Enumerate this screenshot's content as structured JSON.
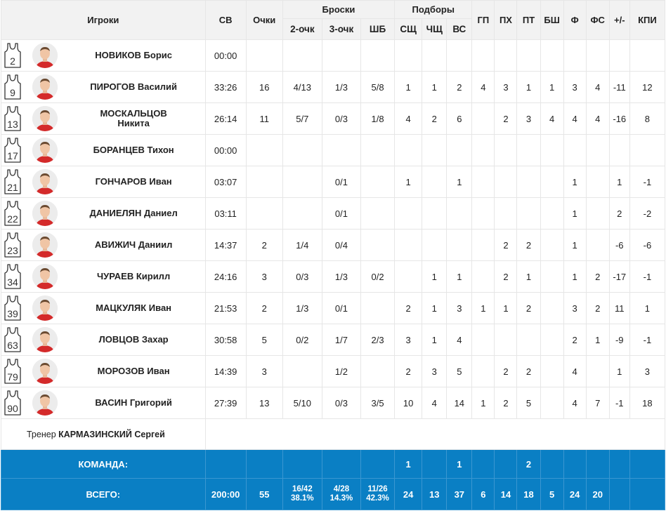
{
  "header": {
    "players": "Игроки",
    "minutes": "СВ",
    "points": "Очки",
    "shots": "Броски",
    "two": "2-очк",
    "three": "3-очк",
    "ft": "ШБ",
    "rebounds": "Подборы",
    "off": "СЩ",
    "def": "ЧЩ",
    "tot": "ВС",
    "ast": "ГП",
    "to": "ПХ",
    "stl": "ПТ",
    "blk": "БШ",
    "pf": "Ф",
    "fd": "ФС",
    "pm": "+/-",
    "eff": "КПИ"
  },
  "players": [
    {
      "num": "2",
      "name": "НОВИКОВ Борис",
      "sv": "00:00",
      "pts": "",
      "two": "",
      "three": "",
      "ft": "",
      "off": "",
      "def": "",
      "tot": "",
      "ast": "",
      "to": "",
      "stl": "",
      "blk": "",
      "pf": "",
      "fd": "",
      "pm": "",
      "eff": ""
    },
    {
      "num": "9",
      "name": "ПИРОГОВ Василий",
      "sv": "33:26",
      "pts": "16",
      "two": "4/13",
      "three": "1/3",
      "ft": "5/8",
      "off": "1",
      "def": "1",
      "tot": "2",
      "ast": "4",
      "to": "3",
      "stl": "1",
      "blk": "1",
      "pf": "3",
      "fd": "4",
      "pm": "-11",
      "eff": "12"
    },
    {
      "num": "13",
      "name": "МОСКАЛЬЦОВ Никита",
      "sv": "26:14",
      "pts": "11",
      "two": "5/7",
      "three": "0/3",
      "ft": "1/8",
      "off": "4",
      "def": "2",
      "tot": "6",
      "ast": "",
      "to": "2",
      "stl": "3",
      "blk": "4",
      "pf": "4",
      "fd": "4",
      "pm": "-16",
      "eff": "8"
    },
    {
      "num": "17",
      "name": "БОРАНЦЕВ Тихон",
      "sv": "00:00",
      "pts": "",
      "two": "",
      "three": "",
      "ft": "",
      "off": "",
      "def": "",
      "tot": "",
      "ast": "",
      "to": "",
      "stl": "",
      "blk": "",
      "pf": "",
      "fd": "",
      "pm": "",
      "eff": ""
    },
    {
      "num": "21",
      "name": "ГОНЧАРОВ Иван",
      "sv": "03:07",
      "pts": "",
      "two": "",
      "three": "0/1",
      "ft": "",
      "off": "1",
      "def": "",
      "tot": "1",
      "ast": "",
      "to": "",
      "stl": "",
      "blk": "",
      "pf": "1",
      "fd": "",
      "pm": "1",
      "eff": "-1"
    },
    {
      "num": "22",
      "name": "ДАНИЕЛЯН Даниел",
      "sv": "03:11",
      "pts": "",
      "two": "",
      "three": "0/1",
      "ft": "",
      "off": "",
      "def": "",
      "tot": "",
      "ast": "",
      "to": "",
      "stl": "",
      "blk": "",
      "pf": "1",
      "fd": "",
      "pm": "2",
      "eff": "-2"
    },
    {
      "num": "23",
      "name": "АВИЖИЧ Даниил",
      "sv": "14:37",
      "pts": "2",
      "two": "1/4",
      "three": "0/4",
      "ft": "",
      "off": "",
      "def": "",
      "tot": "",
      "ast": "",
      "to": "2",
      "stl": "2",
      "blk": "",
      "pf": "1",
      "fd": "",
      "pm": "-6",
      "eff": "-6"
    },
    {
      "num": "34",
      "name": "ЧУРАЕВ Кирилл",
      "sv": "24:16",
      "pts": "3",
      "two": "0/3",
      "three": "1/3",
      "ft": "0/2",
      "off": "",
      "def": "1",
      "tot": "1",
      "ast": "",
      "to": "2",
      "stl": "1",
      "blk": "",
      "pf": "1",
      "fd": "2",
      "pm": "-17",
      "eff": "-1"
    },
    {
      "num": "39",
      "name": "МАЦКУЛЯК Иван",
      "sv": "21:53",
      "pts": "2",
      "two": "1/3",
      "three": "0/1",
      "ft": "",
      "off": "2",
      "def": "1",
      "tot": "3",
      "ast": "1",
      "to": "1",
      "stl": "2",
      "blk": "",
      "pf": "3",
      "fd": "2",
      "pm": "11",
      "eff": "1"
    },
    {
      "num": "63",
      "name": "ЛОВЦОВ Захар",
      "sv": "30:58",
      "pts": "5",
      "two": "0/2",
      "three": "1/7",
      "ft": "2/3",
      "off": "3",
      "def": "1",
      "tot": "4",
      "ast": "",
      "to": "",
      "stl": "",
      "blk": "",
      "pf": "2",
      "fd": "1",
      "pm": "-9",
      "eff": "-1"
    },
    {
      "num": "79",
      "name": "МОРОЗОВ Иван",
      "sv": "14:39",
      "pts": "3",
      "two": "",
      "three": "1/2",
      "ft": "",
      "off": "2",
      "def": "3",
      "tot": "5",
      "ast": "",
      "to": "2",
      "stl": "2",
      "blk": "",
      "pf": "4",
      "fd": "",
      "pm": "1",
      "eff": "3"
    },
    {
      "num": "90",
      "name": "ВАСИН Григорий",
      "sv": "27:39",
      "pts": "13",
      "two": "5/10",
      "three": "0/3",
      "ft": "3/5",
      "off": "10",
      "def": "4",
      "tot": "14",
      "ast": "1",
      "to": "2",
      "stl": "5",
      "blk": "",
      "pf": "4",
      "fd": "7",
      "pm": "-1",
      "eff": "18"
    }
  ],
  "coach": {
    "prefix": "Тренер",
    "name": "КАРМАЗИНСКИЙ Сергей"
  },
  "team": {
    "label": "КОМАНДА:",
    "off": "1",
    "tot": "1",
    "stl": "2"
  },
  "total": {
    "label": "ВСЕГО:",
    "sv": "200:00",
    "pts": "55",
    "two": "16/42",
    "two_pct": "38.1%",
    "three": "4/28",
    "three_pct": "14.3%",
    "ft": "11/26",
    "ft_pct": "42.3%",
    "off": "24",
    "def": "13",
    "tot": "37",
    "ast": "6",
    "to": "14",
    "stl": "18",
    "blk": "5",
    "pf": "24",
    "fd": "20",
    "pm": "",
    "eff": ""
  },
  "colors": {
    "accent": "#0a7fc4",
    "header_bg": "#f2f2f2",
    "jersey_red": "#d42a2a"
  }
}
